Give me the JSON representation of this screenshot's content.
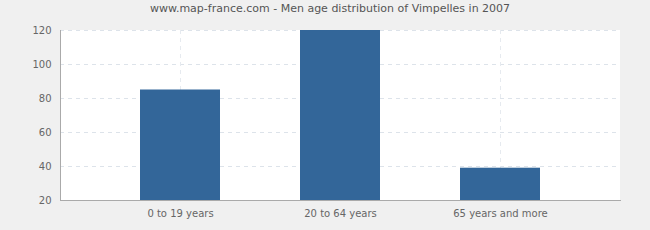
{
  "chart_data": {
    "type": "bar",
    "title": "www.map-france.com - Men age distribution of Vimpelles in 2007",
    "categories": [
      "0 to 19 years",
      "20 to 64 years",
      "65 years and more"
    ],
    "values": [
      85,
      120,
      39
    ],
    "color": "#336699",
    "ylim": [
      20,
      120
    ],
    "yticks": [
      20,
      40,
      60,
      80,
      100,
      120
    ],
    "grid": true
  }
}
